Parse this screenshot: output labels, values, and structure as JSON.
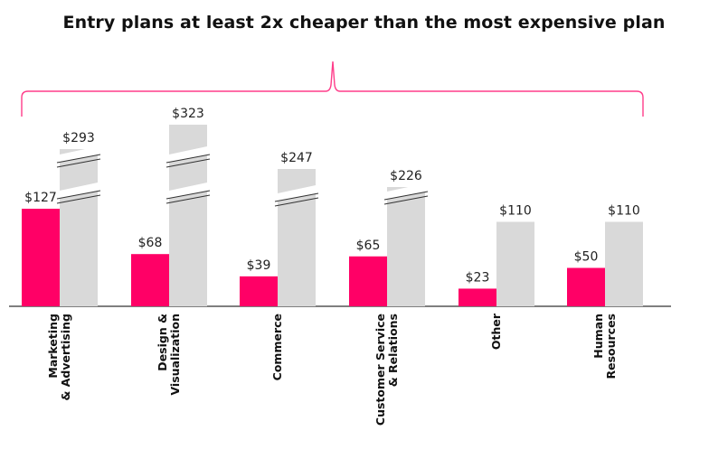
{
  "title": "Entry plans at least 2x cheaper than the most expensive plan",
  "colors": {
    "entry": "#ff0066",
    "expensive": "#d9d9d9",
    "brace": "#ff3d8a",
    "axis": "#333333"
  },
  "chart_data": {
    "type": "bar",
    "categories": [
      [
        "Marketing",
        "& Advertising"
      ],
      [
        "Design &",
        "Visualization"
      ],
      [
        "Commerce"
      ],
      [
        "Customer Service",
        "& Relations"
      ],
      [
        "Other"
      ],
      [
        "Human",
        "Resources"
      ]
    ],
    "series": [
      {
        "values": [
          127,
          68,
          39,
          65,
          23,
          50
        ],
        "labels": [
          "$127",
          "$68",
          "$39",
          "$65",
          "$23",
          "$50"
        ]
      },
      {
        "values": [
          293,
          323,
          247,
          226,
          110,
          110
        ],
        "labels": [
          "$293",
          "$323",
          "$247",
          "$226",
          "$110",
          "$110"
        ]
      }
    ],
    "axis_breaks": [
      "y"
    ],
    "grid": false,
    "legend": "none"
  }
}
